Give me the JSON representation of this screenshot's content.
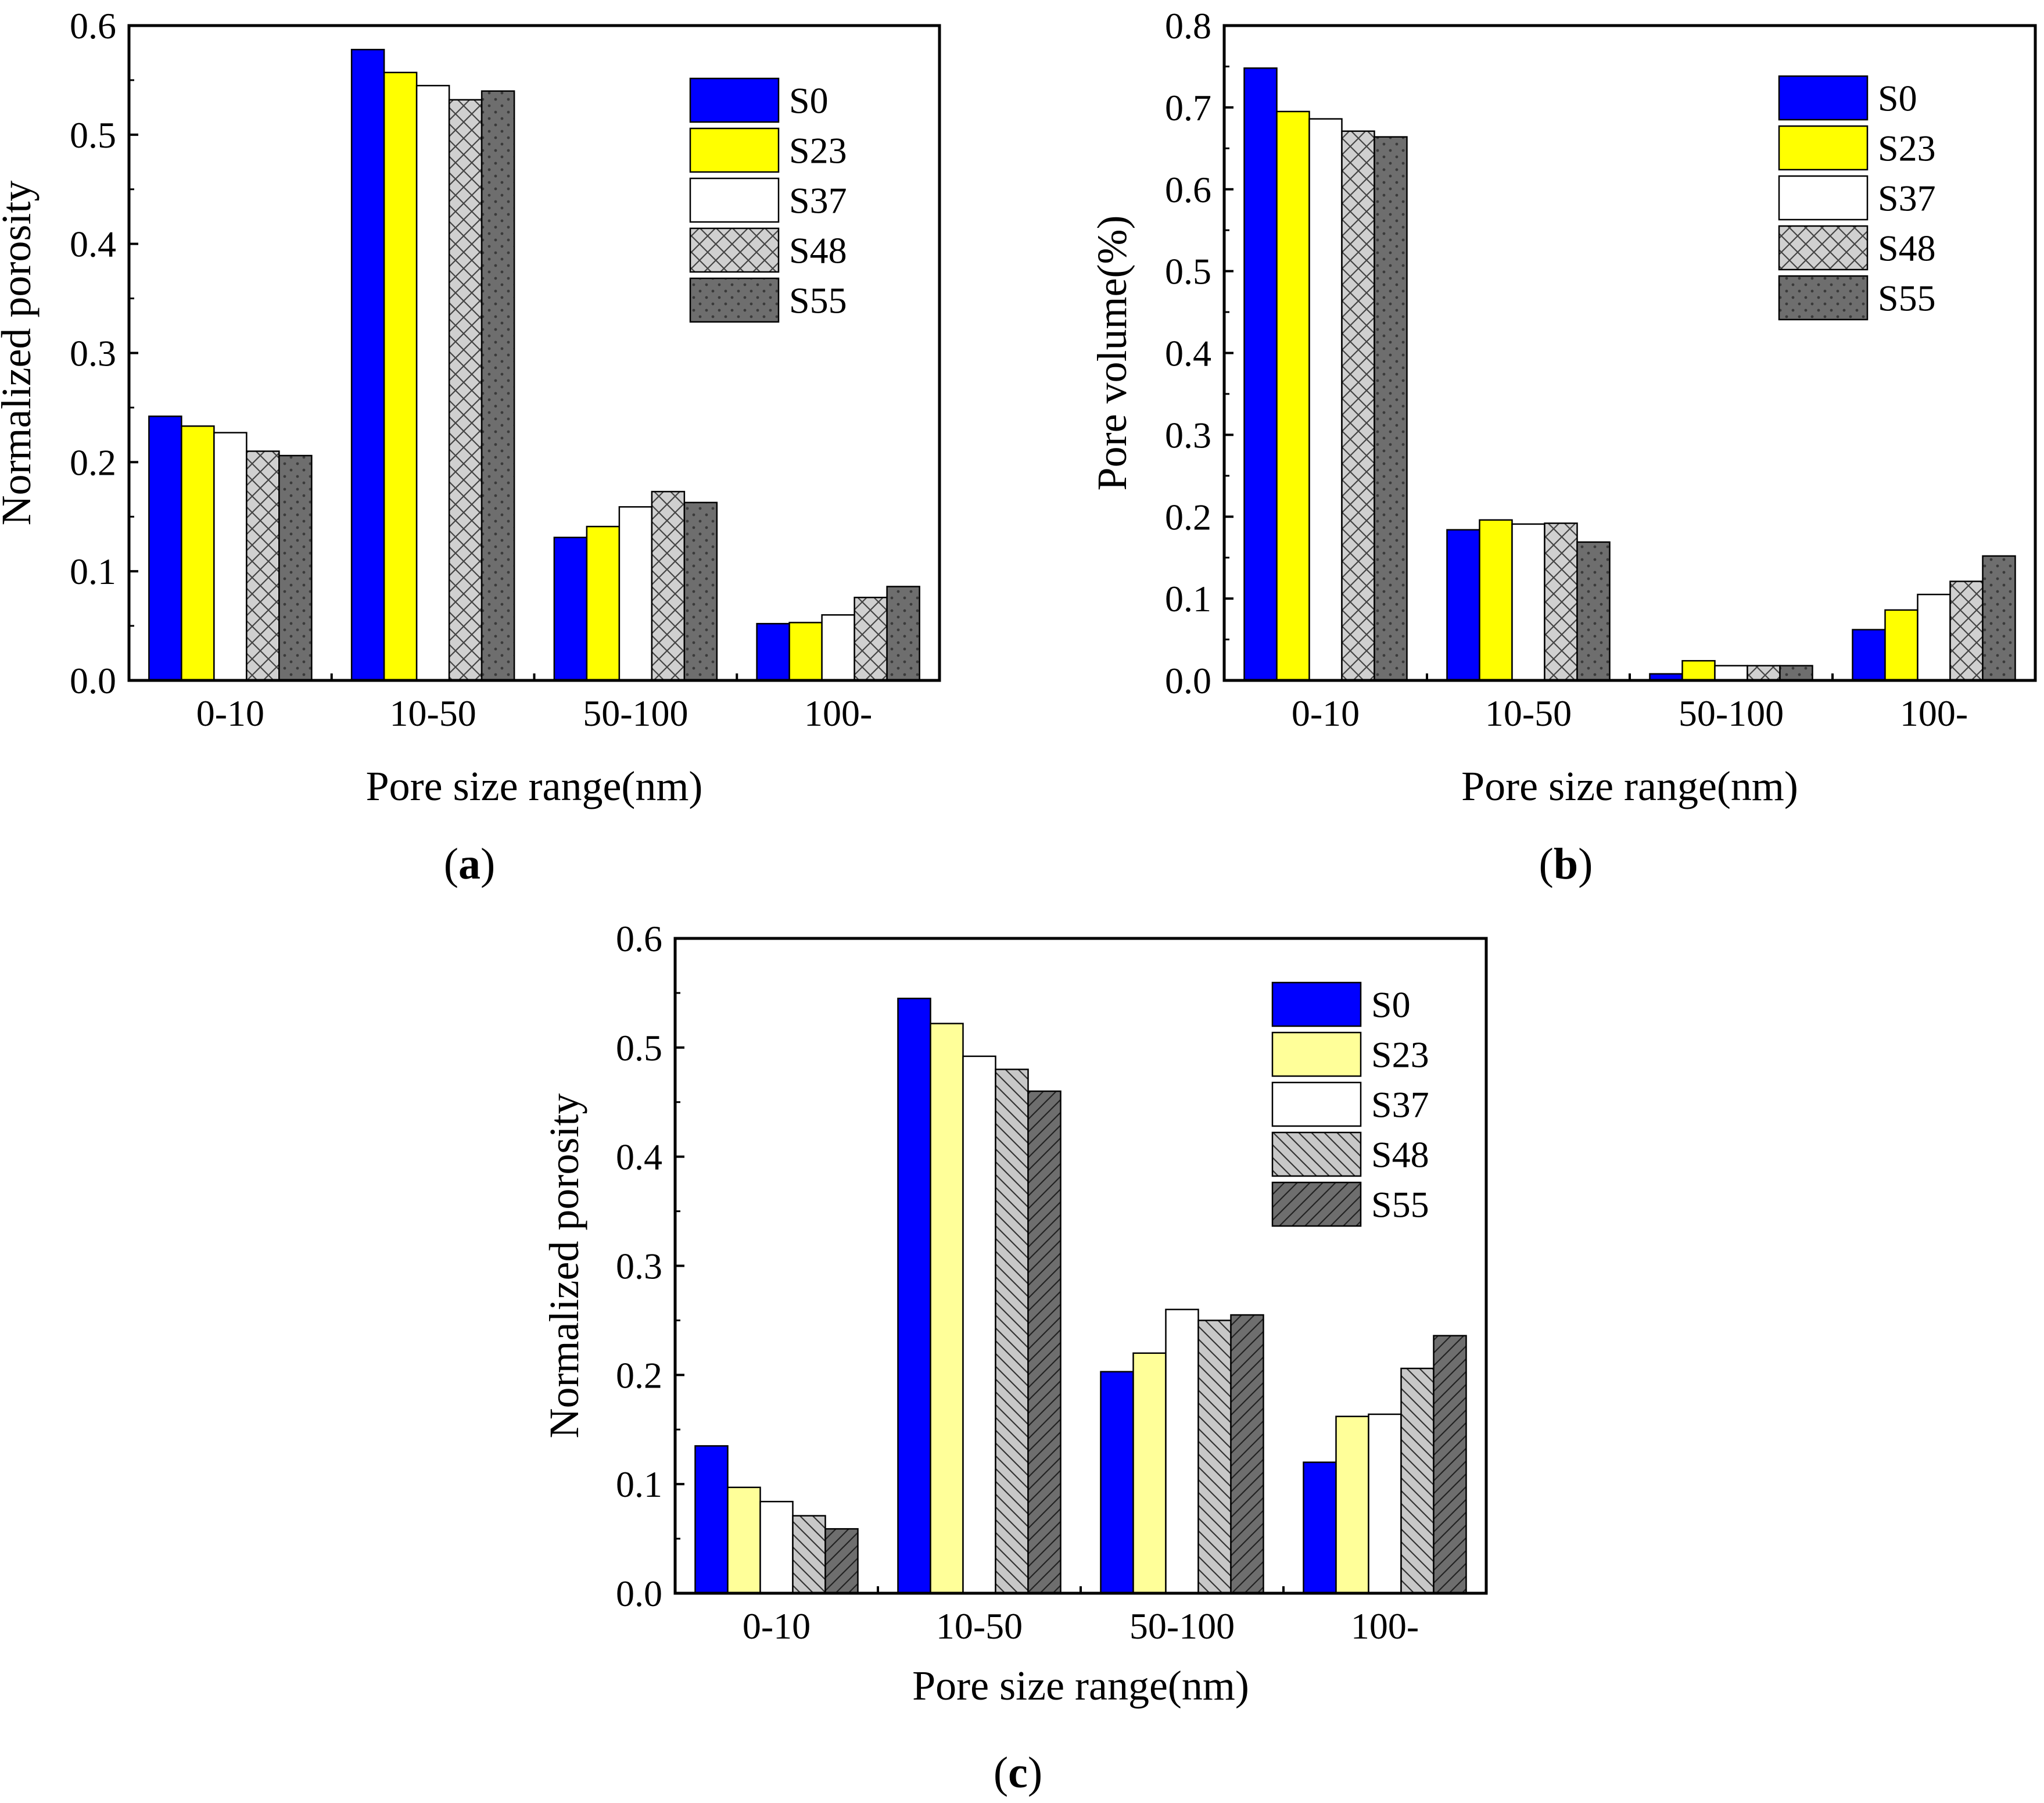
{
  "figure": {
    "panel_labels": [
      "a",
      "b",
      "c"
    ]
  },
  "series_styles": {
    "S0": {
      "fill": "#0000ff",
      "pattern": "solid"
    },
    "S23": {
      "fill": "#ffff00",
      "pattern": "solid"
    },
    "S23_light": {
      "fill": "#ffff99",
      "pattern": "solid"
    },
    "S37": {
      "fill": "#ffffff",
      "pattern": "solid"
    },
    "S48_cross": {
      "fill": "#c8c8c8",
      "pattern": "crosshatch"
    },
    "S55_dots": {
      "fill": "#6e6e6e",
      "pattern": "dots"
    },
    "S48_diag": {
      "fill": "#c8c8c8",
      "pattern": "diagonal-back"
    },
    "S55_diag": {
      "fill": "#6e6e6e",
      "pattern": "diagonal-fwd"
    }
  },
  "chart_data": [
    {
      "type": "bar",
      "panel": "a",
      "xlabel": "Pore size range(nm)",
      "ylabel": "Normalized porosity",
      "ylim": [
        0,
        0.6
      ],
      "yticks": [
        "0.0",
        "0.1",
        "0.2",
        "0.3",
        "0.4",
        "0.5",
        "0.6"
      ],
      "categories": [
        "0-10",
        "10-50",
        "50-100",
        "100-"
      ],
      "legend_position": "top-right",
      "series": [
        {
          "name": "S0",
          "style": "S0",
          "values": [
            0.242,
            0.578,
            0.131,
            0.052
          ]
        },
        {
          "name": "S23",
          "style": "S23",
          "values": [
            0.233,
            0.557,
            0.141,
            0.053
          ]
        },
        {
          "name": "S37",
          "style": "S37",
          "values": [
            0.227,
            0.545,
            0.159,
            0.06
          ]
        },
        {
          "name": "S48",
          "style": "S48_cross",
          "values": [
            0.21,
            0.532,
            0.173,
            0.076
          ]
        },
        {
          "name": "S55",
          "style": "S55_dots",
          "values": [
            0.206,
            0.54,
            0.163,
            0.086
          ]
        }
      ]
    },
    {
      "type": "bar",
      "panel": "b",
      "xlabel": "Pore size range(nm)",
      "ylabel": "Pore volume(%)",
      "ylim": [
        0,
        0.8
      ],
      "yticks": [
        "0.0",
        "0.1",
        "0.2",
        "0.3",
        "0.4",
        "0.5",
        "0.6",
        "0.7",
        "0.8"
      ],
      "categories": [
        "0-10",
        "10-50",
        "50-100",
        "100-"
      ],
      "legend_position": "top-right",
      "series": [
        {
          "name": "S0",
          "style": "S0",
          "values": [
            0.748,
            0.184,
            0.008,
            0.062
          ]
        },
        {
          "name": "S23",
          "style": "S23",
          "values": [
            0.695,
            0.196,
            0.024,
            0.086
          ]
        },
        {
          "name": "S37",
          "style": "S37",
          "values": [
            0.686,
            0.191,
            0.018,
            0.105
          ]
        },
        {
          "name": "S48",
          "style": "S48_cross",
          "values": [
            0.671,
            0.192,
            0.018,
            0.121
          ]
        },
        {
          "name": "S55",
          "style": "S55_dots",
          "values": [
            0.664,
            0.169,
            0.018,
            0.152
          ]
        }
      ]
    },
    {
      "type": "bar",
      "panel": "c",
      "xlabel": "Pore size range(nm)",
      "ylabel": "Normalized porosity",
      "ylim": [
        0,
        0.6
      ],
      "yticks": [
        "0.0",
        "0.1",
        "0.2",
        "0.3",
        "0.4",
        "0.5",
        "0.6"
      ],
      "categories": [
        "0-10",
        "10-50",
        "50-100",
        "100-"
      ],
      "legend_position": "top-right",
      "series": [
        {
          "name": "S0",
          "style": "S0",
          "values": [
            0.135,
            0.545,
            0.203,
            0.12
          ]
        },
        {
          "name": "S23",
          "style": "S23_light",
          "values": [
            0.097,
            0.522,
            0.22,
            0.162
          ]
        },
        {
          "name": "S37",
          "style": "S37",
          "values": [
            0.084,
            0.492,
            0.26,
            0.164
          ]
        },
        {
          "name": "S48",
          "style": "S48_diag",
          "values": [
            0.071,
            0.48,
            0.25,
            0.206
          ]
        },
        {
          "name": "S55",
          "style": "S55_diag",
          "values": [
            0.059,
            0.46,
            0.255,
            0.236
          ]
        }
      ]
    }
  ]
}
